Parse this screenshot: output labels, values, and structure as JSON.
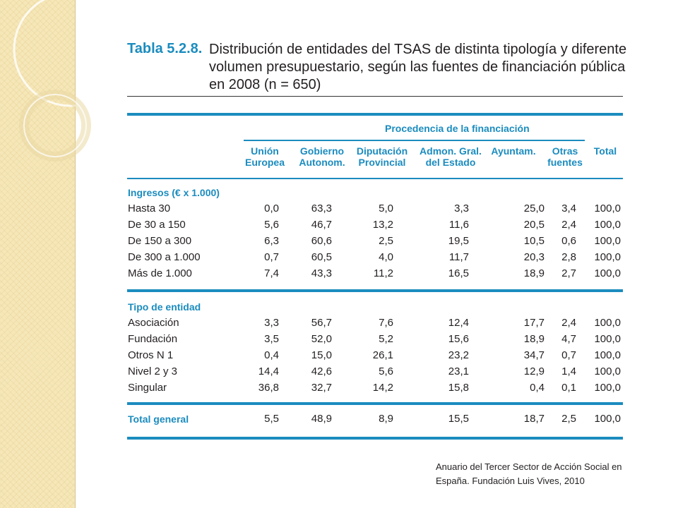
{
  "title": {
    "number": "Tabla 5.2.8.",
    "text": "Distribución de entidades del TSAS de distinta tipología y diferente volumen presupuestario, según las fuentes de financiación pública en 2008 (n = 650)"
  },
  "table": {
    "group_header": "Procedencia de la financiación",
    "columns": [
      "Unión\nEuropea",
      "Gobierno\nAutonom.",
      "Diputación\nProvincial",
      "Admon. Gral.\ndel Estado",
      "Ayuntam.",
      "Otras\nfuentes",
      "Total"
    ],
    "sections": [
      {
        "title": "Ingresos (€ x 1.000)",
        "rows": [
          {
            "label": "Hasta 30",
            "values": [
              "0,0",
              "63,3",
              "5,0",
              "3,3",
              "25,0",
              "3,4",
              "100,0"
            ]
          },
          {
            "label": "De 30 a 150",
            "values": [
              "5,6",
              "46,7",
              "13,2",
              "11,6",
              "20,5",
              "2,4",
              "100,0"
            ]
          },
          {
            "label": "De 150 a 300",
            "values": [
              "6,3",
              "60,6",
              "2,5",
              "19,5",
              "10,5",
              "0,6",
              "100,0"
            ]
          },
          {
            "label": "De 300 a 1.000",
            "values": [
              "0,7",
              "60,5",
              "4,0",
              "11,7",
              "20,3",
              "2,8",
              "100,0"
            ]
          },
          {
            "label": "Más de 1.000",
            "values": [
              "7,4",
              "43,3",
              "11,2",
              "16,5",
              "18,9",
              "2,7",
              "100,0"
            ]
          }
        ]
      },
      {
        "title": "Tipo de entidad",
        "rows": [
          {
            "label": "Asociación",
            "values": [
              "3,3",
              "56,7",
              "7,6",
              "12,4",
              "17,7",
              "2,4",
              "100,0"
            ]
          },
          {
            "label": "Fundación",
            "values": [
              "3,5",
              "52,0",
              "5,2",
              "15,6",
              "18,9",
              "4,7",
              "100,0"
            ]
          },
          {
            "label": "Otros N 1",
            "values": [
              "0,4",
              "15,0",
              "26,1",
              "23,2",
              "34,7",
              "0,7",
              "100,0"
            ]
          },
          {
            "label": "Nivel 2 y 3",
            "values": [
              "14,4",
              "42,6",
              "5,6",
              "23,1",
              "12,9",
              "1,4",
              "100,0"
            ]
          },
          {
            "label": "Singular",
            "values": [
              "36,8",
              "32,7",
              "14,2",
              "15,8",
              "0,4",
              "0,1",
              "100,0"
            ]
          }
        ]
      }
    ],
    "total": {
      "label": "Total general",
      "values": [
        "5,5",
        "48,9",
        "8,9",
        "15,5",
        "18,7",
        "2,5",
        "100,0"
      ]
    }
  },
  "caption": "Anuario del Tercer Sector de Acción Social en España. Fundación Luis Vives, 2010",
  "colors": {
    "accent": "#1b8cbf",
    "band": "#f6e7b8"
  }
}
